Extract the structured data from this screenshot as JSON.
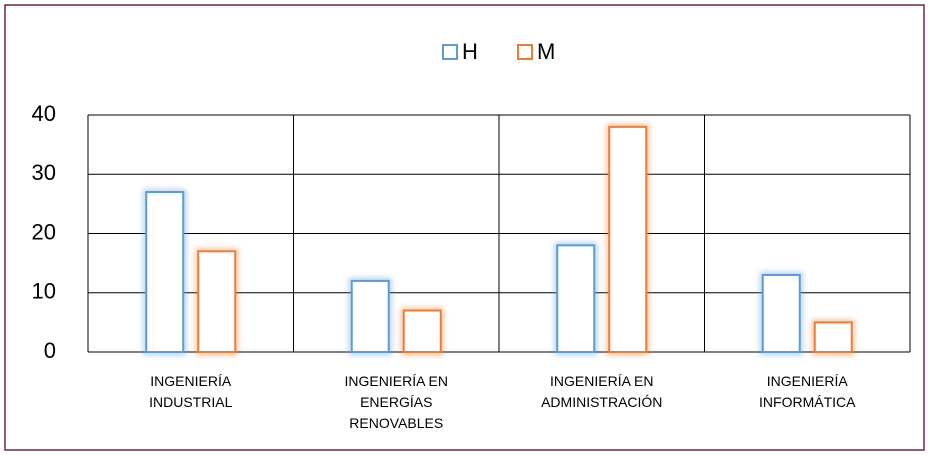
{
  "chart_data": {
    "type": "bar",
    "categories": [
      "INGENIERÍA INDUSTRIAL",
      "INGENIERÍA EN ENERGÍAS RENOVABLES",
      "INGENIERÍA EN ADMINISTRACIÓN",
      "INGENIERÍA INFORMÁTICA"
    ],
    "series": [
      {
        "name": "H",
        "color": "#5b9bd5",
        "values": [
          27,
          12,
          18,
          13
        ]
      },
      {
        "name": "M",
        "color": "#ed7d31",
        "values": [
          17,
          7,
          38,
          5
        ]
      }
    ],
    "ylim": [
      0,
      40
    ],
    "yticks": [
      0,
      10,
      20,
      30,
      40
    ],
    "grid": true,
    "legend": "top"
  }
}
